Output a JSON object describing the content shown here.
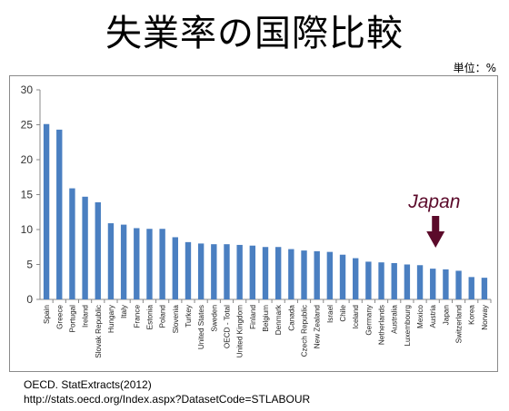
{
  "title": "失業率の国際比較",
  "unit_label": "単位：%",
  "source": {
    "line1": "OECD. StatExtracts(2012)",
    "line2": "http://stats.oecd.org/Index.aspx?DatasetCode=STLABOUR"
  },
  "colors": {
    "bar": "#4a7fc1",
    "arrow": "#5b0a2a"
  },
  "chart_data": {
    "type": "bar",
    "title": "失業率の国際比較",
    "xlabel": "",
    "ylabel": "",
    "unit": "%",
    "ylim": [
      0,
      30
    ],
    "yticks": [
      0,
      5,
      10,
      15,
      20,
      25,
      30
    ],
    "grid": false,
    "categories": [
      "Spain",
      "Greece",
      "Portugal",
      "Ireland",
      "Slovak Republic",
      "Hungary",
      "Italy",
      "France",
      "Estonia",
      "Poland",
      "Slovenia",
      "Turkey",
      "United States",
      "Sweden",
      "OECD - Total",
      "United Kingdom",
      "Finland",
      "Belgium",
      "Denmark",
      "Canada",
      "Czech Republic",
      "New Zealand",
      "Israel",
      "Chile",
      "Iceland",
      "Germany",
      "Netherlands",
      "Australia",
      "Luxembourg",
      "Mexico",
      "Austria",
      "Japan",
      "Switzerland",
      "Korea",
      "Norway"
    ],
    "values": [
      25.1,
      24.3,
      15.9,
      14.7,
      13.9,
      10.9,
      10.7,
      10.2,
      10.1,
      10.1,
      8.9,
      8.2,
      8.0,
      7.9,
      7.9,
      7.8,
      7.7,
      7.5,
      7.5,
      7.2,
      7.0,
      6.9,
      6.8,
      6.4,
      5.9,
      5.4,
      5.3,
      5.2,
      5.0,
      4.9,
      4.4,
      4.3,
      4.1,
      3.2,
      3.1
    ],
    "annotation": {
      "text": "Japan",
      "category": "Japan"
    }
  }
}
